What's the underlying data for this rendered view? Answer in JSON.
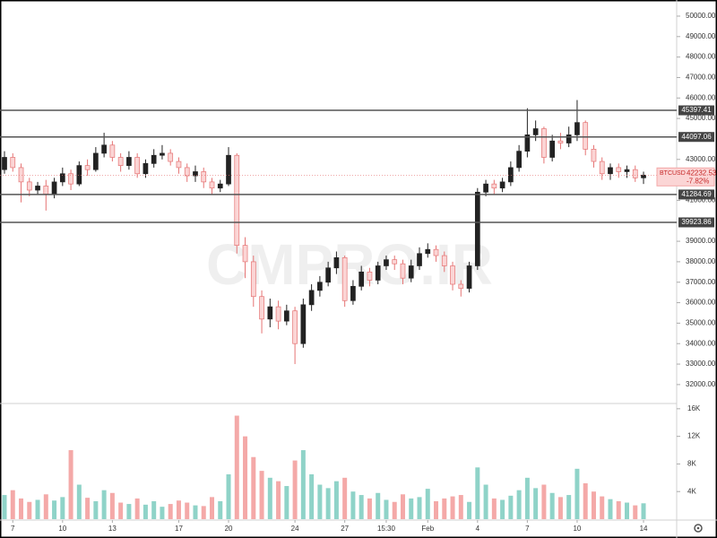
{
  "chart_data": {
    "type": "candlestick",
    "symbol": "BTCUSD",
    "watermark": "CMPRO.IR",
    "last_price": 42232.53,
    "change_label": "-7.82%",
    "categories": [
      null,
      "7",
      null,
      null,
      null,
      null,
      null,
      "10",
      null,
      null,
      null,
      null,
      null,
      "13",
      null,
      null,
      null,
      null,
      null,
      null,
      null,
      "17",
      null,
      null,
      null,
      null,
      null,
      "20",
      null,
      null,
      null,
      null,
      null,
      null,
      null,
      "24",
      null,
      null,
      null,
      null,
      null,
      "27",
      null,
      null,
      null,
      null,
      "15:30",
      null,
      null,
      null,
      null,
      "Feb",
      null,
      null,
      null,
      null,
      null,
      "4",
      null,
      null,
      null,
      null,
      null,
      "7",
      null,
      null,
      null,
      null,
      null,
      "10",
      null,
      null,
      null,
      null,
      null,
      null,
      null,
      "14"
    ],
    "open": [
      42500,
      43100,
      42600,
      41900,
      41500,
      41700,
      41300,
      41900,
      42300,
      41800,
      42700,
      42500,
      43300,
      43700,
      43100,
      42700,
      43100,
      42300,
      42800,
      43200,
      43300,
      42900,
      42600,
      42200,
      42400,
      41900,
      41600,
      41800,
      43200,
      38800,
      38000,
      36300,
      35200,
      35800,
      35100,
      35600,
      34000,
      35900,
      36600,
      37000,
      37700,
      38200,
      36100,
      36800,
      37500,
      37100,
      37800,
      38100,
      37900,
      37200,
      37800,
      38400,
      38600,
      38300,
      37800,
      36900,
      36700,
      37800,
      41400,
      41800,
      41600,
      41900,
      42600,
      43400,
      44200,
      44500,
      43100,
      43900,
      43800,
      44200,
      44800,
      43500,
      42900,
      42300,
      42600,
      42400,
      42500,
      42100
    ],
    "high": [
      43400,
      43300,
      42800,
      42100,
      41900,
      42000,
      42100,
      42600,
      42500,
      42900,
      43000,
      43600,
      44300,
      43900,
      43300,
      43400,
      43300,
      43000,
      43500,
      43700,
      43500,
      43100,
      42800,
      42700,
      42600,
      42100,
      42000,
      43600,
      43300,
      39200,
      38300,
      36600,
      36200,
      36100,
      35900,
      35800,
      36200,
      36900,
      37300,
      38000,
      38500,
      38300,
      37100,
      37800,
      37700,
      38000,
      38300,
      38300,
      38100,
      38100,
      38700,
      38900,
      38800,
      38500,
      38000,
      37100,
      38000,
      41600,
      42000,
      42000,
      42100,
      42900,
      43700,
      45500,
      44900,
      44600,
      44200,
      44300,
      44600,
      45900,
      44900,
      43700,
      43100,
      42800,
      42800,
      42700,
      42700,
      42400
    ],
    "low": [
      42300,
      42400,
      40900,
      41200,
      41300,
      40500,
      41100,
      41700,
      41500,
      41700,
      42200,
      42400,
      43100,
      42900,
      42400,
      42500,
      42100,
      42100,
      42600,
      43000,
      42700,
      42300,
      41900,
      41900,
      41600,
      41300,
      41400,
      41700,
      38400,
      37200,
      35800,
      34500,
      34800,
      34700,
      34900,
      33000,
      33800,
      35600,
      36300,
      36800,
      37400,
      35800,
      35900,
      36600,
      36800,
      36900,
      37600,
      37600,
      36900,
      37000,
      37600,
      38200,
      38000,
      37500,
      36600,
      36300,
      36500,
      37600,
      41200,
      41300,
      41400,
      41700,
      42400,
      43100,
      43900,
      42800,
      42900,
      43500,
      43600,
      43900,
      43200,
      42600,
      42000,
      42000,
      42100,
      42100,
      41900,
      41800
    ],
    "close": [
      43100,
      42600,
      41900,
      41500,
      41700,
      41300,
      41900,
      42300,
      41800,
      42700,
      42500,
      43300,
      43700,
      43100,
      42700,
      43100,
      42300,
      42800,
      43200,
      43300,
      42900,
      42600,
      42200,
      42400,
      41900,
      41600,
      41800,
      43200,
      38800,
      38000,
      36300,
      35200,
      35800,
      35100,
      35600,
      34000,
      35900,
      36600,
      37000,
      37700,
      38200,
      36100,
      36800,
      37500,
      37100,
      37800,
      38100,
      37900,
      37200,
      37800,
      38400,
      38600,
      38300,
      37800,
      36900,
      36700,
      37800,
      41400,
      41800,
      41600,
      41900,
      42600,
      43400,
      44200,
      44500,
      43100,
      43900,
      43800,
      44200,
      44800,
      43500,
      42900,
      42300,
      42600,
      42400,
      42500,
      42100,
      42232.53
    ],
    "volume": [
      3500,
      4200,
      3000,
      2500,
      2800,
      3600,
      2700,
      3200,
      10000,
      5000,
      3100,
      2600,
      4200,
      3800,
      2400,
      2200,
      3000,
      2100,
      2600,
      1800,
      2200,
      2700,
      2400,
      2000,
      1900,
      3200,
      2600,
      6500,
      15000,
      12000,
      9000,
      7000,
      6000,
      5500,
      4800,
      8500,
      10000,
      6500,
      5000,
      4500,
      5500,
      6000,
      4000,
      3500,
      3000,
      3800,
      2800,
      2500,
      3600,
      3000,
      3200,
      4400,
      2600,
      3000,
      3300,
      3500,
      2500,
      7500,
      5000,
      3000,
      2800,
      3400,
      4200,
      6000,
      4500,
      5000,
      3800,
      3200,
      3500,
      7300,
      5200,
      4000,
      3300,
      2900,
      2600,
      2400,
      2000,
      2300
    ],
    "levels": [
      45397.41,
      44097.06,
      41284.69,
      39923.86
    ],
    "ylim": [
      31250,
      50700
    ],
    "yticks": [
      {
        "value": 32000,
        "label": "32000.00"
      },
      {
        "value": 33000,
        "label": "33000.00"
      },
      {
        "value": 34000,
        "label": "34000.00"
      },
      {
        "value": 35000,
        "label": "35000.00"
      },
      {
        "value": 36000,
        "label": "36000.00"
      },
      {
        "value": 37000,
        "label": "37000.00"
      },
      {
        "value": 38000,
        "label": "38000.00"
      },
      {
        "value": 39000,
        "label": "39000.00"
      },
      {
        "value": 41000,
        "label": "41000.00"
      },
      {
        "value": 43000,
        "label": "43000.00"
      },
      {
        "value": 45000,
        "label": "45000.00"
      },
      {
        "value": 46000,
        "label": "46000.00"
      },
      {
        "value": 47000,
        "label": "47000.00"
      },
      {
        "value": 48000,
        "label": "48000.00"
      },
      {
        "value": 49000,
        "label": "49000.00"
      },
      {
        "value": 50000,
        "label": "50000.00"
      }
    ],
    "volume_ylim": [
      0,
      16500
    ],
    "volume_yticks": [
      {
        "value": 4000,
        "label": "4K"
      },
      {
        "value": 8000,
        "label": "8K"
      },
      {
        "value": 12000,
        "label": "12K"
      },
      {
        "value": 16000,
        "label": "16K"
      }
    ],
    "up_color": "#222222",
    "down_color": "#e57373",
    "volume_up_color": "#8fd3c8",
    "volume_down_color": "#f4a9a8"
  }
}
